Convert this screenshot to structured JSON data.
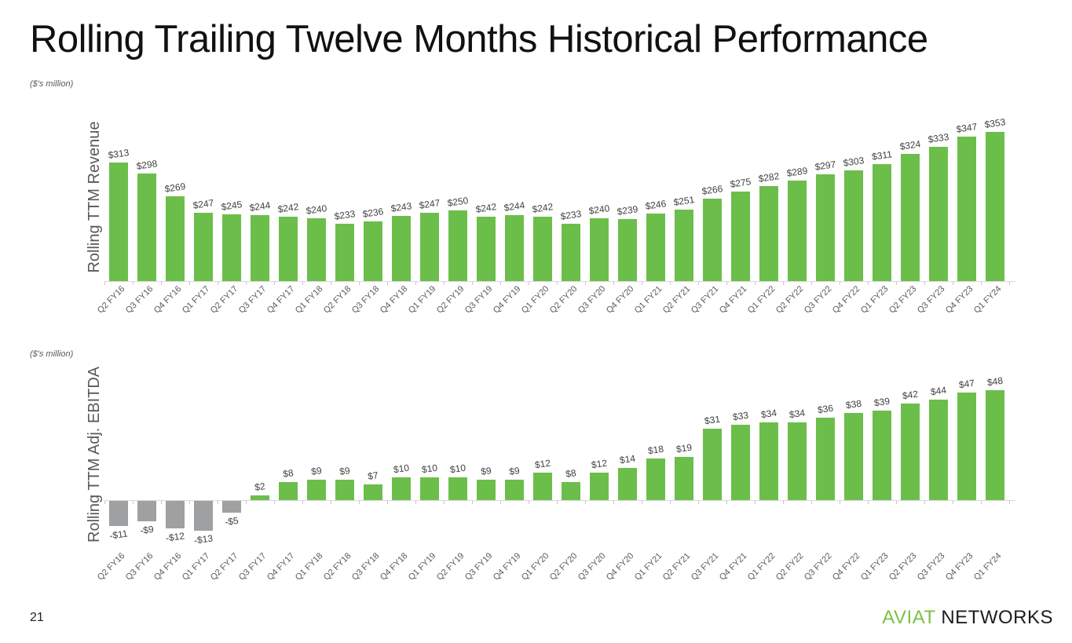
{
  "slide": {
    "title": "Rolling Trailing Twelve Months Historical Performance",
    "page_number": "21",
    "logo_aviat": "AVIAT",
    "logo_networks": "NETWORKS"
  },
  "colors": {
    "bar_green": "#6cbe4b",
    "bar_gray": "#9ea0a2",
    "value_label_text": "#3f3f3f",
    "axis_text": "#595959",
    "axis_line": "#d9d9d9",
    "logo_green": "#7cc142",
    "logo_dark": "#1d1d1b"
  },
  "chart_data": [
    {
      "type": "bar",
      "title": "Rolling TTM Revenue",
      "ylabel": "Rolling TTM Revenue",
      "units_note": "($'s million)",
      "value_prefix": "$",
      "legend": "none",
      "grid": false,
      "axis_range_hint": [
        158,
        360
      ],
      "categories": [
        "Q2 FY16",
        "Q3 FY16",
        "Q4 FY16",
        "Q1 FY17",
        "Q2 FY17",
        "Q3 FY17",
        "Q4 FY17",
        "Q1 FY18",
        "Q2 FY18",
        "Q3 FY18",
        "Q4 FY18",
        "Q1 FY19",
        "Q2 FY19",
        "Q3 FY19",
        "Q4 FY19",
        "Q1 FY20",
        "Q2 FY20",
        "Q3 FY20",
        "Q4 FY20",
        "Q1 FY21",
        "Q2 FY21",
        "Q3 FY21",
        "Q4 FY21",
        "Q1 FY22",
        "Q2 FY22",
        "Q3 FY22",
        "Q4 FY22",
        "Q1 FY23",
        "Q2 FY23",
        "Q3 FY23",
        "Q4 FY23",
        "Q1 FY24"
      ],
      "values": [
        313,
        298,
        269,
        247,
        245,
        244,
        242,
        240,
        233,
        236,
        243,
        247,
        250,
        242,
        244,
        242,
        233,
        240,
        239,
        246,
        251,
        266,
        275,
        282,
        289,
        297,
        303,
        311,
        324,
        333,
        347,
        353
      ],
      "bar_color": "#6cbe4b"
    },
    {
      "type": "bar",
      "title": "Rolling TTM Adj. EBITDA",
      "ylabel": "Rolling TTM Adj. EBITDA",
      "units_note": "($'s million)",
      "value_prefix": "$",
      "legend": "none",
      "grid": false,
      "axis_range_hint": [
        -20,
        55
      ],
      "categories": [
        "Q2 FY16",
        "Q3 FY16",
        "Q4 FY16",
        "Q1 FY17",
        "Q2 FY17",
        "Q3 FY17",
        "Q4 FY17",
        "Q1 FY18",
        "Q2 FY18",
        "Q3 FY18",
        "Q4 FY18",
        "Q1 FY19",
        "Q2 FY19",
        "Q3 FY19",
        "Q4 FY19",
        "Q1 FY20",
        "Q2 FY20",
        "Q3 FY20",
        "Q4 FY20",
        "Q1 FY21",
        "Q2 FY21",
        "Q3 FY21",
        "Q4 FY21",
        "Q1 FY22",
        "Q2 FY22",
        "Q3 FY22",
        "Q4 FY22",
        "Q1 FY23",
        "Q2 FY23",
        "Q3 FY23",
        "Q4 FY23",
        "Q1 FY24"
      ],
      "values": [
        -11,
        -9,
        -12,
        -13,
        -5,
        2,
        8,
        9,
        9,
        7,
        10,
        10,
        10,
        9,
        9,
        12,
        8,
        12,
        14,
        18,
        19,
        31,
        33,
        34,
        34,
        36,
        38,
        39,
        42,
        44,
        47,
        48
      ],
      "bar_color": "#6cbe4b",
      "negative_bar_color": "#9ea0a2"
    }
  ]
}
